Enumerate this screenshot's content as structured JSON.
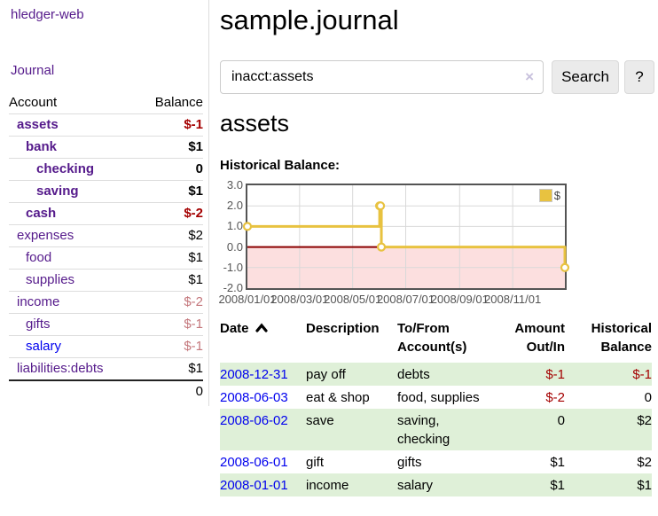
{
  "app": {
    "brand": "hledger-web",
    "nav": {
      "journal": "Journal"
    }
  },
  "sidebar": {
    "account_col": "Account",
    "balance_col": "Balance",
    "accounts": [
      {
        "name": "assets",
        "balance": "$-1",
        "indent": 0,
        "bold": true,
        "amount_style": "neg-strong",
        "link_color": "purple"
      },
      {
        "name": "bank",
        "balance": "$1",
        "indent": 1,
        "bold": true,
        "amount_style": "pos",
        "link_color": "purple"
      },
      {
        "name": "checking",
        "balance": "0",
        "indent": 2,
        "bold": true,
        "amount_style": "pos",
        "link_color": "purple"
      },
      {
        "name": "saving",
        "balance": "$1",
        "indent": 2,
        "bold": true,
        "amount_style": "pos",
        "link_color": "purple"
      },
      {
        "name": "cash",
        "balance": "$-2",
        "indent": 1,
        "bold": true,
        "amount_style": "neg-strong",
        "link_color": "purple"
      },
      {
        "name": "expenses",
        "balance": "$2",
        "indent": 0,
        "bold": false,
        "amount_style": "pos",
        "link_color": "purple"
      },
      {
        "name": "food",
        "balance": "$1",
        "indent": 1,
        "bold": false,
        "amount_style": "pos",
        "link_color": "purple"
      },
      {
        "name": "supplies",
        "balance": "$1",
        "indent": 1,
        "bold": false,
        "amount_style": "pos",
        "link_color": "purple"
      },
      {
        "name": "income",
        "balance": "$-2",
        "indent": 0,
        "bold": false,
        "amount_style": "neg-soft",
        "link_color": "purple"
      },
      {
        "name": "gifts",
        "balance": "$-1",
        "indent": 1,
        "bold": false,
        "amount_style": "neg-soft",
        "link_color": "purple"
      },
      {
        "name": "salary",
        "balance": "$-1",
        "indent": 1,
        "bold": false,
        "amount_style": "neg-soft",
        "link_color": "blue"
      },
      {
        "name": "liabilities:debts",
        "balance": "$1",
        "indent": 0,
        "bold": false,
        "amount_style": "pos",
        "link_color": "purple"
      }
    ],
    "total": "0"
  },
  "main": {
    "title": "sample.journal",
    "search": {
      "value": "inacct:assets",
      "clear": "×",
      "button": "Search",
      "help": "?"
    },
    "heading": "assets",
    "chart_title": "Historical Balance:"
  },
  "chart_data": {
    "type": "line",
    "step": true,
    "title": "Historical Balance:",
    "series": [
      {
        "name": "$",
        "color": "#e8c240",
        "points": [
          [
            "2008-01-01",
            1
          ],
          [
            "2008-06-01",
            2
          ],
          [
            "2008-06-02",
            2
          ],
          [
            "2008-06-03",
            0
          ],
          [
            "2008-12-31",
            -1
          ]
        ]
      }
    ],
    "ylim": [
      -2.0,
      3.0
    ],
    "yticks": [
      {
        "v": 3,
        "label": "3.0"
      },
      {
        "v": 2,
        "label": "2.0"
      },
      {
        "v": 1,
        "label": "1.0"
      },
      {
        "v": 0,
        "label": "0.0"
      },
      {
        "v": -1,
        "label": "-1.0"
      },
      {
        "v": -2,
        "label": "-2.0"
      }
    ],
    "xrange": [
      "2008-01-01",
      "2008-12-31"
    ],
    "xticks": [
      {
        "date": "2008-01-01",
        "label": "2008/01/01"
      },
      {
        "date": "2008-03-01",
        "label": "2008/03/01"
      },
      {
        "date": "2008-05-01",
        "label": "2008/05/01"
      },
      {
        "date": "2008-07-01",
        "label": "2008/07/01"
      },
      {
        "date": "2008-09-01",
        "label": "2008/09/01"
      },
      {
        "date": "2008-11-01",
        "label": "2008/11/01"
      }
    ],
    "grid": true,
    "legend_position": "top-right",
    "negative_fill": "#fcdfdf",
    "zero_line_color": "#8b0000",
    "axis_text_color": "#545454"
  },
  "register": {
    "headers": {
      "date": "Date",
      "description": "Description",
      "account": "To/From Account(s)",
      "amount": "Amount Out/In",
      "balance": "Historical Balance"
    },
    "sort": "asc",
    "rows": [
      {
        "date": "2008-12-31",
        "description": "pay off",
        "accounts": "debts",
        "amount": "$-1",
        "amount_neg": true,
        "balance": "$-1",
        "balance_neg": true
      },
      {
        "date": "2008-06-03",
        "description": "eat & shop",
        "accounts": "food, supplies",
        "amount": "$-2",
        "amount_neg": true,
        "balance": "0",
        "balance_neg": false
      },
      {
        "date": "2008-06-02",
        "description": "save",
        "accounts": "saving, checking",
        "amount": "0",
        "amount_neg": false,
        "balance": "$2",
        "balance_neg": false
      },
      {
        "date": "2008-06-01",
        "description": "gift",
        "accounts": "gifts",
        "amount": "$1",
        "amount_neg": false,
        "balance": "$2",
        "balance_neg": false
      },
      {
        "date": "2008-01-01",
        "description": "income",
        "accounts": "salary",
        "amount": "$1",
        "amount_neg": false,
        "balance": "$1",
        "balance_neg": false
      }
    ]
  }
}
